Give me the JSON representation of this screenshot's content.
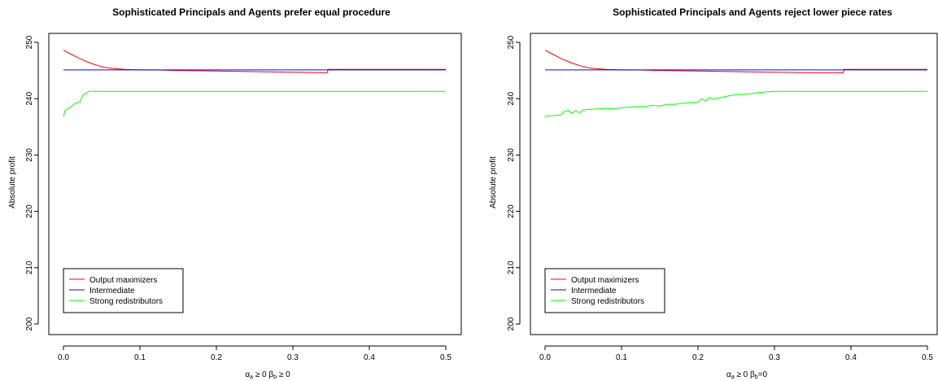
{
  "chart_data": [
    {
      "type": "line",
      "title": "Sophisticated Principals and Agents prefer equal procedure",
      "ylabel": "Absolute profit",
      "xlabel_parts": [
        "α",
        "a",
        " ≥ 0    β",
        "b",
        " ≥ 0"
      ],
      "xlim": [
        0,
        0.5
      ],
      "ylim": [
        200,
        250
      ],
      "xticks": [
        0.0,
        0.1,
        0.2,
        0.3,
        0.4,
        0.5
      ],
      "xtick_labels": [
        "0.0",
        "0.1",
        "0.2",
        "0.3",
        "0.4",
        "0.5"
      ],
      "yticks": [
        200,
        210,
        220,
        230,
        240,
        250
      ],
      "ytick_labels": [
        "200",
        "210",
        "220",
        "230",
        "240",
        "250"
      ],
      "legend_position": "bottom-left",
      "series": [
        {
          "name": "Output maximizers",
          "color": "#ff0000",
          "x": [
            0.0,
            0.01,
            0.02,
            0.03,
            0.04,
            0.05,
            0.06,
            0.07,
            0.08,
            0.1,
            0.12,
            0.15,
            0.2,
            0.25,
            0.3,
            0.34,
            0.345,
            0.346,
            0.35,
            0.4,
            0.5
          ],
          "y": [
            248.6,
            247.9,
            247.2,
            246.6,
            246.1,
            245.7,
            245.4,
            245.3,
            245.2,
            245.1,
            245.1,
            245.0,
            244.9,
            244.8,
            244.7,
            244.6,
            244.6,
            245.2,
            245.2,
            245.2,
            245.2
          ]
        },
        {
          "name": "Intermediate",
          "color": "#0000ff",
          "x": [
            0.0,
            0.1,
            0.2,
            0.3,
            0.4,
            0.5
          ],
          "y": [
            245.1,
            245.1,
            245.1,
            245.1,
            245.1,
            245.1
          ]
        },
        {
          "name": "Strong redistributors",
          "color": "#00ff00",
          "x": [
            0.0,
            0.002,
            0.004,
            0.006,
            0.01,
            0.012,
            0.015,
            0.018,
            0.02,
            0.022,
            0.025,
            0.026,
            0.03,
            0.033,
            0.05,
            0.1,
            0.2,
            0.3,
            0.4,
            0.5
          ],
          "y": [
            236.8,
            237.9,
            238.0,
            238.3,
            238.5,
            238.8,
            239.1,
            239.3,
            239.4,
            239.5,
            240.5,
            240.7,
            241.0,
            241.3,
            241.3,
            241.3,
            241.3,
            241.3,
            241.3,
            241.3
          ]
        }
      ]
    },
    {
      "type": "line",
      "title": "Sophisticated Principals and Agents reject lower piece rates",
      "ylabel": "Absolute profit",
      "xlabel_parts": [
        "α",
        "a",
        " ≥ 0    β",
        "b",
        "=0"
      ],
      "xlim": [
        0,
        0.5
      ],
      "ylim": [
        200,
        250
      ],
      "xticks": [
        0.0,
        0.1,
        0.2,
        0.3,
        0.4,
        0.5
      ],
      "xtick_labels": [
        "0.0",
        "0.1",
        "0.2",
        "0.3",
        "0.4",
        "0.5"
      ],
      "yticks": [
        200,
        210,
        220,
        230,
        240,
        250
      ],
      "ytick_labels": [
        "200",
        "210",
        "220",
        "230",
        "240",
        "250"
      ],
      "legend_position": "bottom-left",
      "series": [
        {
          "name": "Output maximizers",
          "color": "#ff0000",
          "x": [
            0.0,
            0.01,
            0.02,
            0.03,
            0.04,
            0.05,
            0.06,
            0.07,
            0.08,
            0.1,
            0.12,
            0.15,
            0.2,
            0.25,
            0.3,
            0.35,
            0.385,
            0.39,
            0.391,
            0.4,
            0.5
          ],
          "y": [
            248.6,
            247.9,
            247.2,
            246.6,
            246.1,
            245.7,
            245.4,
            245.3,
            245.2,
            245.1,
            245.1,
            245.0,
            244.9,
            244.8,
            244.7,
            244.6,
            244.6,
            244.6,
            245.2,
            245.2,
            245.2
          ]
        },
        {
          "name": "Intermediate",
          "color": "#0000ff",
          "x": [
            0.0,
            0.1,
            0.2,
            0.3,
            0.4,
            0.5
          ],
          "y": [
            245.1,
            245.1,
            245.1,
            245.1,
            245.1,
            245.1
          ]
        },
        {
          "name": "Strong redistributors",
          "color": "#00ff00",
          "x": [
            0.0,
            0.01,
            0.02,
            0.025,
            0.03,
            0.035,
            0.04,
            0.045,
            0.05,
            0.06,
            0.07,
            0.08,
            0.09,
            0.1,
            0.11,
            0.12,
            0.13,
            0.14,
            0.15,
            0.16,
            0.17,
            0.18,
            0.19,
            0.2,
            0.205,
            0.21,
            0.215,
            0.22,
            0.23,
            0.24,
            0.25,
            0.26,
            0.27,
            0.28,
            0.29,
            0.3,
            0.35,
            0.4,
            0.45,
            0.5
          ],
          "y": [
            236.9,
            237.0,
            237.1,
            237.7,
            237.9,
            237.4,
            237.9,
            237.5,
            238.0,
            238.1,
            238.2,
            238.3,
            238.2,
            238.4,
            238.5,
            238.6,
            238.6,
            238.8,
            238.7,
            239.0,
            239.0,
            239.2,
            239.3,
            239.4,
            240.0,
            239.6,
            240.2,
            239.9,
            240.2,
            240.5,
            240.7,
            240.8,
            240.9,
            241.1,
            241.2,
            241.3,
            241.3,
            241.3,
            241.3,
            241.3
          ]
        }
      ]
    }
  ]
}
